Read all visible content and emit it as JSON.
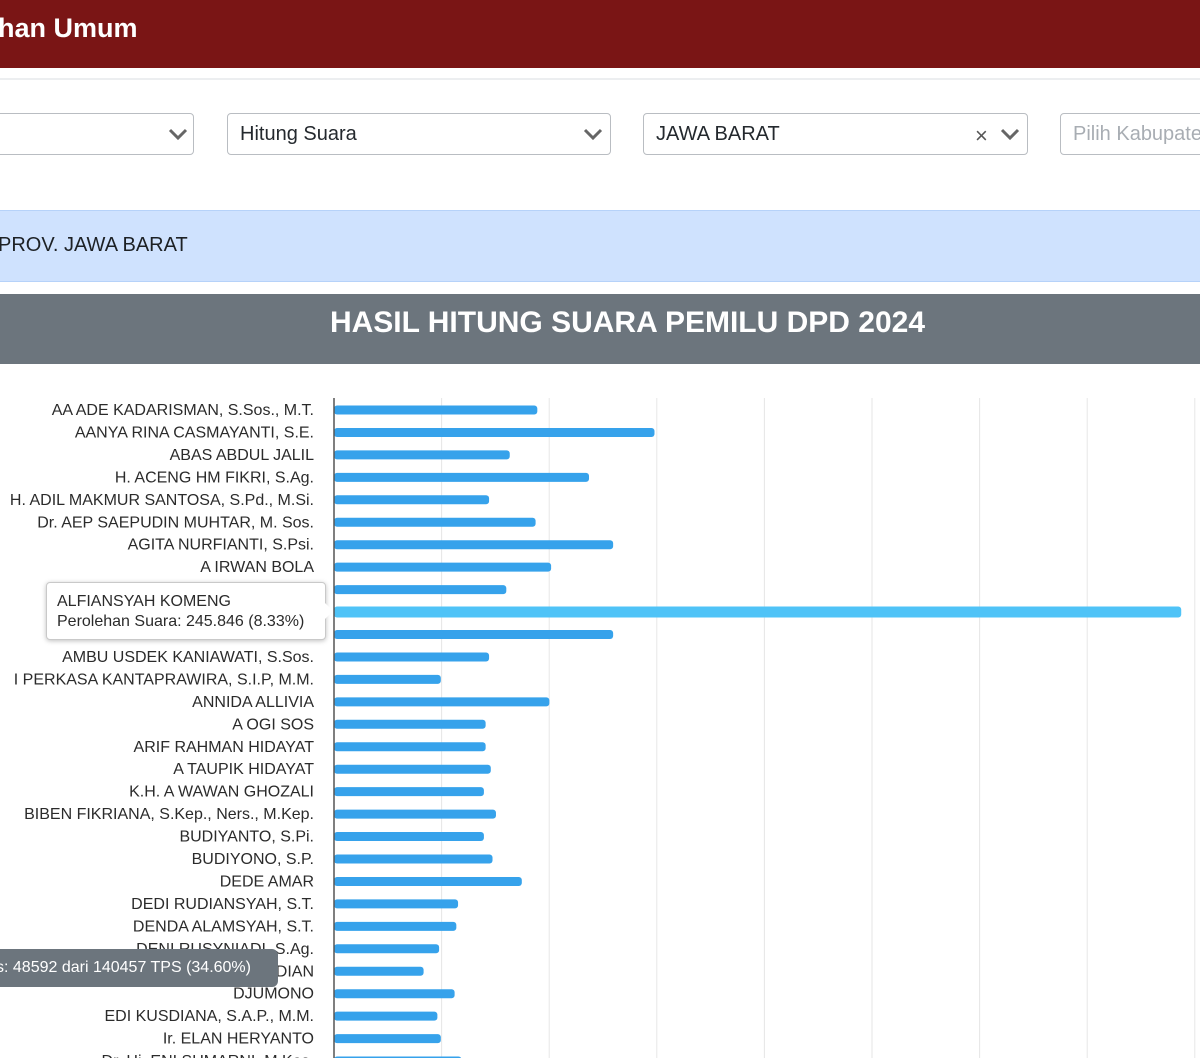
{
  "header": {
    "title": "han Umum"
  },
  "filters": {
    "first": {
      "value": ""
    },
    "type": {
      "value": "Hitung Suara"
    },
    "province": {
      "value": "JAWA BARAT",
      "clear": "×"
    },
    "regency": {
      "placeholder": "Pilih Kabupaten"
    }
  },
  "info_bar": {
    "text": "PROV. JAWA BARAT"
  },
  "chart_header": {
    "title": "HASIL HITUNG SUARA PEMILU DPD 2024"
  },
  "tooltip": {
    "name": "ALFIANSYAH KOMENG",
    "text": "Perolehan Suara: 245.846 (8.33%)"
  },
  "status": {
    "text": "s: 48592 dari 140457 TPS (34.60%)"
  },
  "colors": {
    "bar": "#36a2eb",
    "bar_highlight": "#4fc3f7",
    "header": "#7a1515",
    "chart_header": "#6c757d"
  },
  "chart_data": {
    "type": "bar",
    "orientation": "horizontal",
    "title": "HASIL HITUNG SUARA PEMILU DPD 2024",
    "grid": true,
    "xlim": [
      0,
      260000
    ],
    "categories": [
      "AA ADE KADARISMAN, S.Sos., M.T.",
      "AANYA RINA CASMAYANTI, S.E.",
      "ABAS ABDUL JALIL",
      "H. ACENG HM FIKRI, S.Ag.",
      "H. ADIL MAKMUR SANTOSA, S.Pd., M.Si.",
      "Dr. AEP SAEPUDIN MUHTAR, M. Sos.",
      "AGITA NURFIANTI, S.Psi.",
      "A IRWAN BOLA",
      "",
      "ALFIANSYAH KOMENG",
      "",
      "AMBU USDEK KANIAWATI, S.Sos.",
      "I PERKASA KANTAPRAWIRA, S.I.P, M.M.",
      "ANNIDA ALLIVIA",
      "A OGI SOS",
      "ARIF RAHMAN HIDAYAT",
      "A TAUPIK HIDAYAT",
      "K.H. A WAWAN GHOZALI",
      "BIBEN FIKRIANA, S.Kep., Ners., M.Kep.",
      "BUDIYANTO, S.Pi.",
      "BUDIYONO, S.P.",
      "DEDE AMAR",
      "DEDI RUDIANSYAH, S.T.",
      "DENDA ALAMSYAH, S.T.",
      "DENI RUSYNIADI, S.Ag.",
      "DIAN",
      "DJUMONO",
      "EDI KUSDIANA, S.A.P., M.M.",
      "Ir. ELAN HERYANTO",
      "Dr. Hj. ENI SUMARNI, M.Kes."
    ],
    "values": [
      59000,
      93000,
      51000,
      74000,
      45000,
      58500,
      81000,
      63000,
      50000,
      245846,
      81000,
      45000,
      31000,
      62500,
      44000,
      44000,
      45500,
      43500,
      47000,
      43500,
      46000,
      54500,
      36000,
      35500,
      30500,
      26000,
      35000,
      30000,
      31000,
      37000
    ],
    "highlight_index": 9
  }
}
